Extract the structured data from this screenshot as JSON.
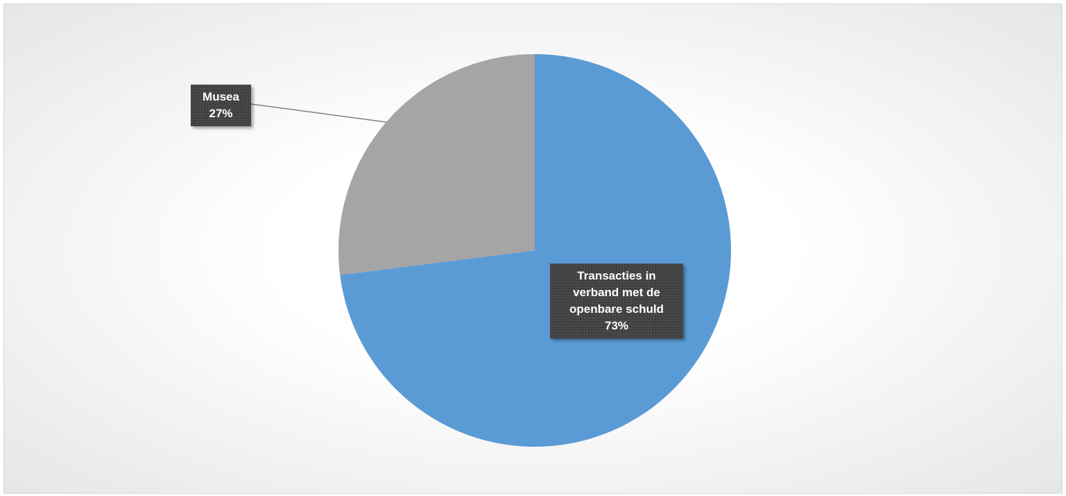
{
  "chart_data": {
    "type": "pie",
    "categories": [
      "Transacties in verband met de openbare schuld",
      "Musea"
    ],
    "values": [
      73,
      27
    ],
    "value_labels": [
      "73%",
      "27%"
    ],
    "colors": [
      "#5b9bd5",
      "#a5a5a5"
    ]
  }
}
